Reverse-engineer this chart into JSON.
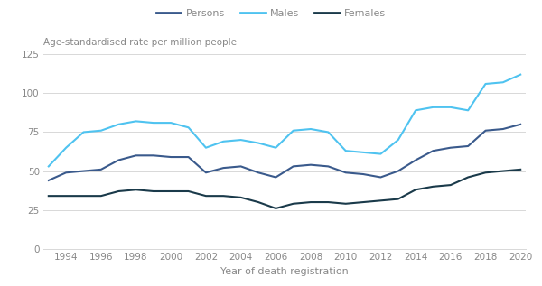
{
  "years": [
    1993,
    1994,
    1995,
    1996,
    1997,
    1998,
    1999,
    2000,
    2001,
    2002,
    2003,
    2004,
    2005,
    2006,
    2007,
    2008,
    2009,
    2010,
    2011,
    2012,
    2013,
    2014,
    2015,
    2016,
    2017,
    2018,
    2019,
    2020
  ],
  "persons": [
    44,
    49,
    50,
    51,
    57,
    60,
    60,
    59,
    59,
    49,
    52,
    53,
    49,
    46,
    53,
    54,
    53,
    49,
    48,
    46,
    50,
    57,
    63,
    65,
    66,
    76,
    77,
    80
  ],
  "males": [
    53,
    65,
    75,
    76,
    80,
    82,
    81,
    81,
    78,
    65,
    69,
    70,
    68,
    65,
    76,
    77,
    75,
    63,
    62,
    61,
    70,
    89,
    91,
    91,
    89,
    106,
    107,
    112
  ],
  "females": [
    34,
    34,
    34,
    34,
    37,
    38,
    37,
    37,
    37,
    34,
    34,
    33,
    30,
    26,
    29,
    30,
    30,
    29,
    30,
    31,
    32,
    38,
    40,
    41,
    46,
    49,
    50,
    51
  ],
  "persons_color": "#3a5a8c",
  "males_color": "#4fc3f0",
  "females_color": "#1a3a4a",
  "legend_labels": [
    "Persons",
    "Males",
    "Females"
  ],
  "ylabel": "Age-standardised rate per million people",
  "xlabel": "Year of death registration",
  "ylim": [
    0,
    125
  ],
  "yticks": [
    0,
    25,
    50,
    75,
    100,
    125
  ],
  "xticks": [
    1994,
    1996,
    1998,
    2000,
    2002,
    2004,
    2006,
    2008,
    2010,
    2012,
    2014,
    2016,
    2018,
    2020
  ],
  "background_color": "#ffffff",
  "grid_color": "#d8d8d8",
  "linewidth": 1.5,
  "tick_color": "#888888",
  "label_color": "#888888"
}
